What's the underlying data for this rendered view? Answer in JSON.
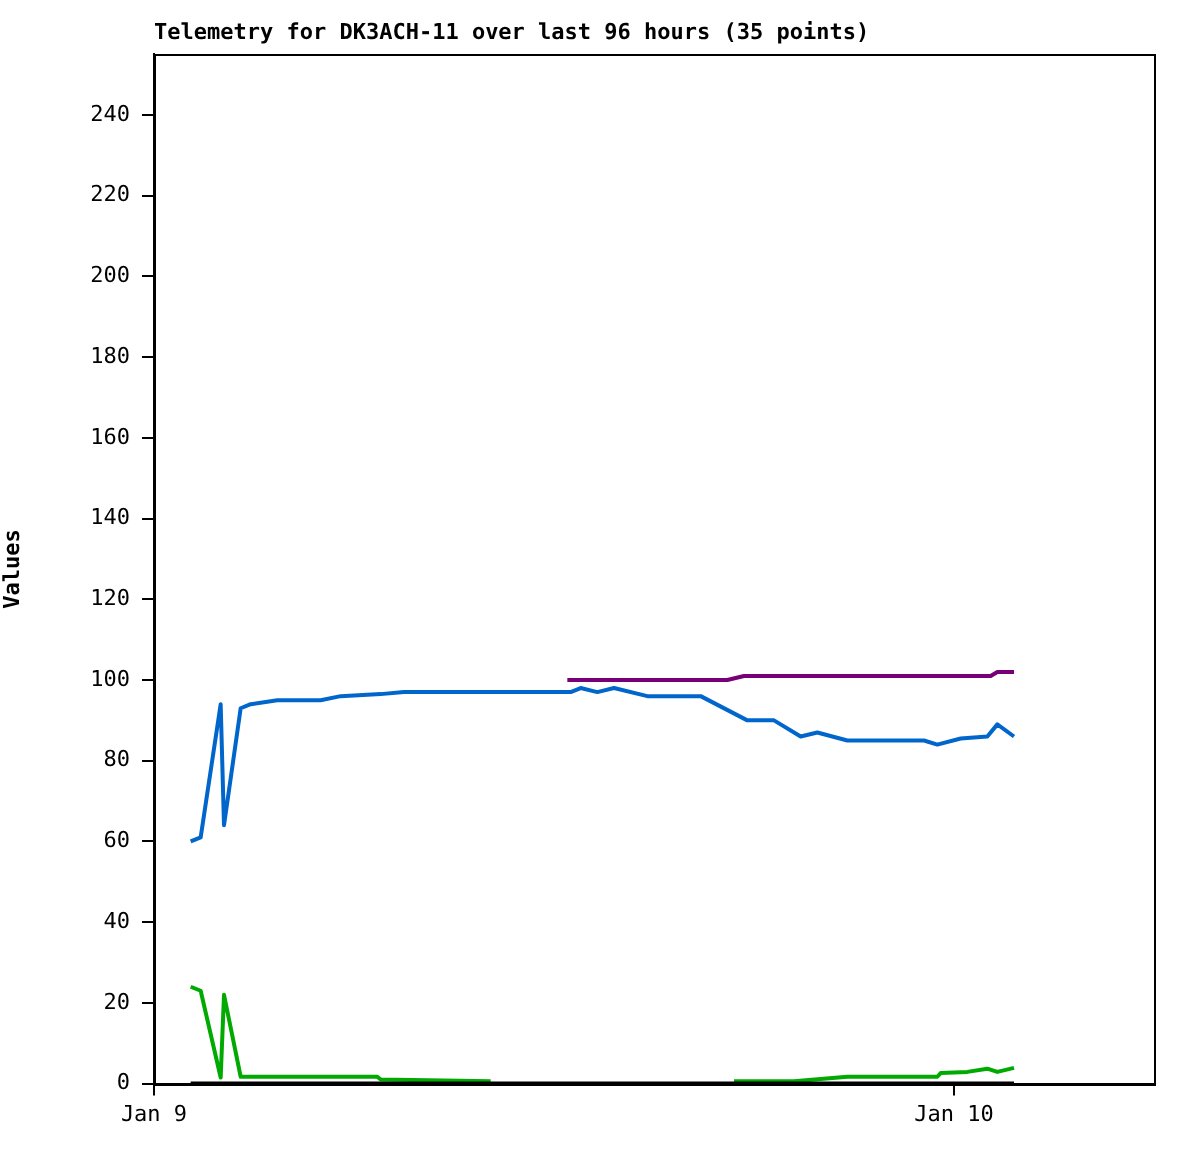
{
  "chart_data": {
    "type": "line",
    "title": "Telemetry for DK3ACH-11 over last 96 hours (35 points)",
    "ylabel": "Values",
    "xlim": [
      "--01-09",
      "--01-10T06:00"
    ],
    "xticks": [
      {
        "value": "--01-09",
        "label": "Jan 9"
      },
      {
        "value": "--01-10",
        "label": "Jan 10"
      }
    ],
    "ylim": [
      0,
      255
    ],
    "yticks": [
      0,
      20,
      40,
      60,
      80,
      100,
      120,
      140,
      160,
      180,
      200,
      220,
      240
    ],
    "grid": false,
    "legend": false,
    "marker": "none",
    "line_style": "solid",
    "series": [
      {
        "color": "#000000",
        "x": [
          "--01-09T01:06",
          "--01-10T01:48"
        ],
        "values": [
          0,
          0
        ]
      },
      {
        "color": "#0066cc",
        "x": [
          "--01-09T01:06",
          "--01-09T01:24",
          "--01-09T02:00",
          "--01-09T02:06",
          "--01-09T02:36",
          "--01-09T02:54",
          "--01-09T03:42",
          "--01-09T05:00",
          "--01-09T05:36",
          "--01-09T06:48",
          "--01-09T07:30",
          "--01-09T12:30",
          "--01-09T12:48",
          "--01-09T13:18",
          "--01-09T13:48",
          "--01-09T14:48",
          "--01-09T16:24",
          "--01-09T17:48",
          "--01-09T18:36",
          "--01-09T19:24",
          "--01-09T19:54",
          "--01-09T20:48",
          "--01-09T23:06",
          "--01-09T23:30",
          "--01-10T00:12",
          "--01-10T01:00",
          "--01-10T01:18",
          "--01-10T01:48"
        ],
        "values": [
          60,
          61,
          94,
          64,
          93,
          94,
          95,
          95,
          96,
          96.5,
          97,
          97,
          98,
          97,
          98,
          96,
          96,
          90,
          90,
          86,
          87,
          85,
          85,
          84,
          85.5,
          86,
          89,
          86
        ]
      },
      {
        "color": "#770077",
        "x": [
          "--01-09T12:24",
          "--01-09T17:12",
          "--01-09T17:42",
          "--01-10T01:06",
          "--01-10T01:18",
          "--01-10T01:48"
        ],
        "values": [
          100,
          100,
          101,
          101,
          102,
          102
        ]
      },
      {
        "color": "#00aa00",
        "x": [
          "--01-09T01:06",
          "--01-09T01:24",
          "--01-09T02:00",
          "--01-09T02:06",
          "--01-09T02:36",
          "--01-09T06:42",
          "--01-09T06:48",
          "--01-09T10:06",
          "--01-09T10:12",
          "--01-09T17:18",
          "--01-09T17:24",
          "--01-09T19:12",
          "--01-09T20:48",
          "--01-09T23:30",
          "--01-09T23:36",
          "--01-10T00:24",
          "--01-10T01:00",
          "--01-10T01:18",
          "--01-10T01:48"
        ],
        "values": [
          24,
          23,
          1.5,
          22,
          1.7,
          1.7,
          1,
          0.6,
          null,
          null,
          0.6,
          0.6,
          1.7,
          1.7,
          2.6,
          2.9,
          3.7,
          2.9,
          3.9
        ]
      }
    ]
  }
}
